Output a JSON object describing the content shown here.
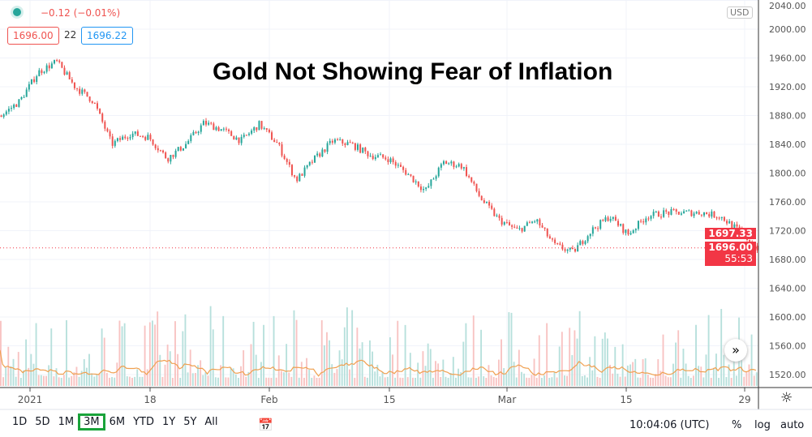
{
  "legend": {
    "change": "−0.12 (−0.01%)",
    "bid": "1696.00",
    "spread": "22",
    "ask": "1696.22"
  },
  "title": "Gold Not Showing Fear of Inflation",
  "currency": "USD",
  "price_tags": {
    "last": "1697.33",
    "current": "1696.00",
    "countdown": "55:53"
  },
  "bottom": {
    "ranges": [
      "1D",
      "5D",
      "1M",
      "3M",
      "6M",
      "YTD",
      "1Y",
      "5Y",
      "All"
    ],
    "selected": "3M",
    "time": "10:04:06 (UTC)",
    "pct": "%",
    "log": "log",
    "auto": "auto"
  },
  "colors": {
    "up": "#26a69a",
    "down": "#ef5350",
    "accent": "#f23645",
    "volma": "#f0a050"
  },
  "chart_data": {
    "type": "candlestick",
    "title": "Gold Not Showing Fear of Inflation",
    "x_ticks": [
      "2021",
      "18",
      "Feb",
      "15",
      "Mar",
      "15",
      "29"
    ],
    "y_ticks": [
      2040,
      2000,
      1960,
      1920,
      1880,
      1840,
      1800,
      1760,
      1720,
      1680,
      1640,
      1600,
      1560,
      1520
    ],
    "ylim": [
      1510,
      2045
    ],
    "close_approx": [
      1880,
      1900,
      1940,
      1955,
      1920,
      1900,
      1840,
      1855,
      1850,
      1820,
      1840,
      1870,
      1860,
      1845,
      1868,
      1840,
      1790,
      1820,
      1845,
      1840,
      1825,
      1820,
      1800,
      1775,
      1815,
      1810,
      1765,
      1735,
      1720,
      1735,
      1700,
      1690,
      1720,
      1740,
      1715,
      1740,
      1745,
      1745,
      1745,
      1740,
      1720,
      1696
    ],
    "grid": true
  }
}
